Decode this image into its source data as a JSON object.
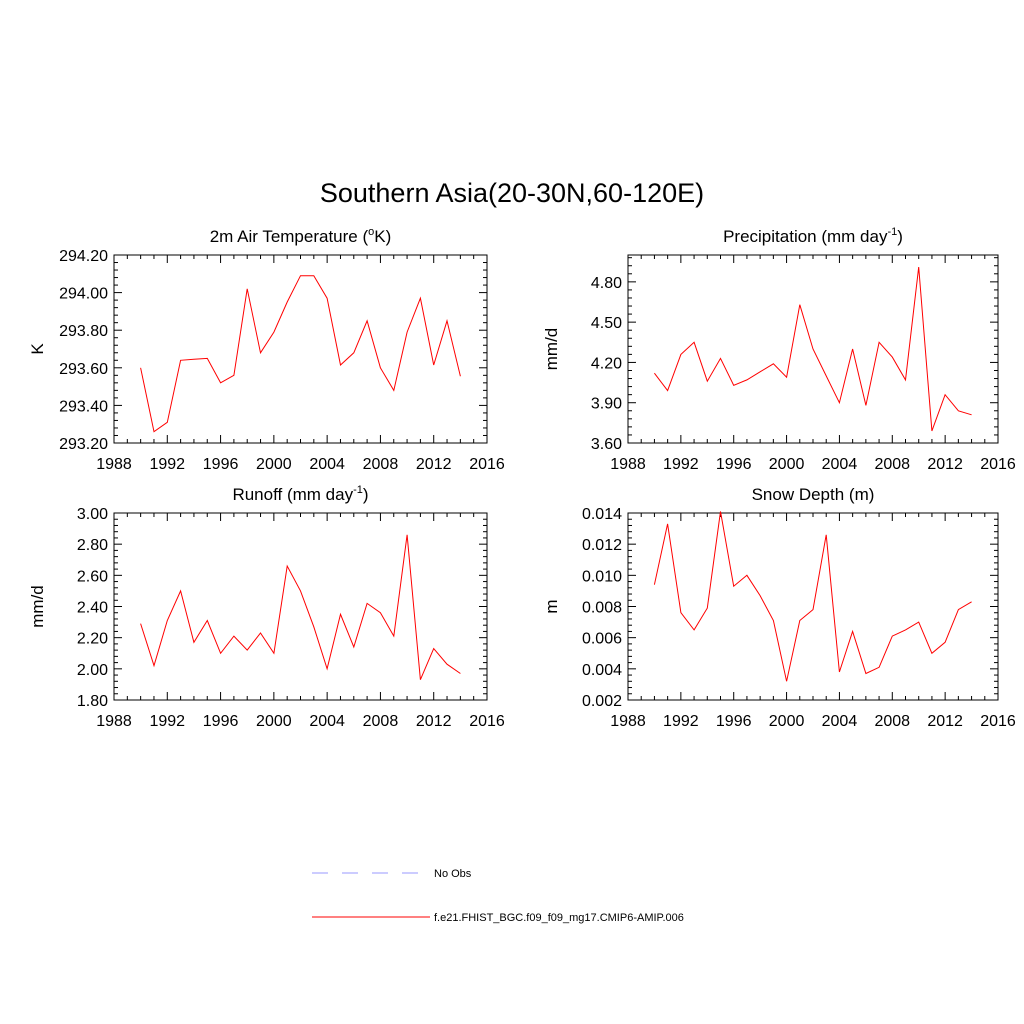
{
  "title": "Southern Asia(20-30N,60-120E)",
  "colors": {
    "model": "#ff0000",
    "obs": "#9999ff",
    "axis": "#000000"
  },
  "legend": {
    "obs_label": "No Obs",
    "model_label": "f.e21.FHIST_BGC.f09_f09_mg17.CMIP6-AMIP.006"
  },
  "chart_data": [
    {
      "type": "line",
      "title_main": "2m Air Temperature (",
      "title_sup_pre": "o",
      "title_post": "K)",
      "ylabel": "K",
      "xlabel": "",
      "xlim": [
        1988,
        2016
      ],
      "xticks": [
        "1988",
        "1992",
        "1996",
        "2000",
        "2004",
        "2008",
        "2012",
        "2016"
      ],
      "ylim": [
        293.2,
        294.2
      ],
      "yticks": [
        "293.20",
        "293.40",
        "293.60",
        "293.80",
        "294.00",
        "294.20"
      ],
      "x": [
        1990,
        1991,
        1992,
        1993,
        1994,
        1995,
        1996,
        1997,
        1998,
        1999,
        2000,
        2001,
        2002,
        2003,
        2004,
        2005,
        2006,
        2007,
        2008,
        2009,
        2010,
        2011,
        2012,
        2013,
        2014
      ],
      "series": [
        {
          "name": "f.e21.FHIST_BGC.f09_f09_mg17.CMIP6-AMIP.006",
          "values": [
            293.6,
            293.26,
            293.31,
            293.64,
            293.645,
            293.65,
            293.52,
            293.56,
            294.02,
            293.68,
            293.79,
            293.95,
            294.09,
            294.09,
            293.97,
            293.615,
            293.68,
            293.85,
            293.6,
            293.48,
            293.79,
            293.97,
            293.615,
            293.85,
            293.555
          ]
        }
      ]
    },
    {
      "type": "line",
      "title_main": "Precipitation (mm day",
      "title_sup_post": "-1",
      "title_post": ")",
      "ylabel": "mm/d",
      "xlabel": "",
      "xlim": [
        1988,
        2016
      ],
      "xticks": [
        "1988",
        "1992",
        "1996",
        "2000",
        "2004",
        "2008",
        "2012",
        "2016"
      ],
      "ylim": [
        3.6,
        5.0
      ],
      "yticks": [
        "3.60",
        "3.90",
        "4.20",
        "4.50",
        "4.80"
      ],
      "x": [
        1990,
        1991,
        1992,
        1993,
        1994,
        1995,
        1996,
        1997,
        1998,
        1999,
        2000,
        2001,
        2002,
        2003,
        2004,
        2005,
        2006,
        2007,
        2008,
        2009,
        2010,
        2011,
        2012,
        2013,
        2014
      ],
      "series": [
        {
          "name": "f.e21.FHIST_BGC.f09_f09_mg17.CMIP6-AMIP.006",
          "values": [
            4.12,
            3.99,
            4.26,
            4.35,
            4.06,
            4.23,
            4.03,
            4.07,
            4.13,
            4.19,
            4.09,
            4.63,
            4.3,
            4.1,
            3.9,
            4.3,
            3.88,
            4.35,
            4.24,
            4.07,
            4.91,
            3.69,
            3.96,
            3.84,
            3.81
          ]
        }
      ]
    },
    {
      "type": "line",
      "title_main": "Runoff (mm day",
      "title_sup_post": "-1",
      "title_post": ")",
      "ylabel": "mm/d",
      "xlabel": "",
      "xlim": [
        1988,
        2016
      ],
      "xticks": [
        "1988",
        "1992",
        "1996",
        "2000",
        "2004",
        "2008",
        "2012",
        "2016"
      ],
      "ylim": [
        1.8,
        3.0
      ],
      "yticks": [
        "1.80",
        "2.00",
        "2.20",
        "2.40",
        "2.60",
        "2.80",
        "3.00"
      ],
      "x": [
        1990,
        1991,
        1992,
        1993,
        1994,
        1995,
        1996,
        1997,
        1998,
        1999,
        2000,
        2001,
        2002,
        2003,
        2004,
        2005,
        2006,
        2007,
        2008,
        2009,
        2010,
        2011,
        2012,
        2013,
        2014
      ],
      "series": [
        {
          "name": "f.e21.FHIST_BGC.f09_f09_mg17.CMIP6-AMIP.006",
          "values": [
            2.29,
            2.02,
            2.31,
            2.5,
            2.17,
            2.31,
            2.1,
            2.21,
            2.12,
            2.23,
            2.1,
            2.66,
            2.5,
            2.27,
            2.0,
            2.35,
            2.14,
            2.42,
            2.36,
            2.21,
            2.86,
            1.93,
            2.13,
            2.03,
            1.97
          ]
        }
      ]
    },
    {
      "type": "line",
      "title_main": "Snow Depth (m)",
      "title_post": "",
      "ylabel": "m",
      "xlabel": "",
      "xlim": [
        1988,
        2016
      ],
      "xticks": [
        "1988",
        "1992",
        "1996",
        "2000",
        "2004",
        "2008",
        "2012",
        "2016"
      ],
      "ylim": [
        0.002,
        0.014
      ],
      "yticks": [
        "0.002",
        "0.004",
        "0.006",
        "0.008",
        "0.010",
        "0.012",
        "0.014"
      ],
      "x": [
        1990,
        1991,
        1992,
        1993,
        1994,
        1995,
        1996,
        1997,
        1998,
        1999,
        2000,
        2001,
        2002,
        2003,
        2004,
        2005,
        2006,
        2007,
        2008,
        2009,
        2010,
        2011,
        2012,
        2013,
        2014
      ],
      "series": [
        {
          "name": "f.e21.FHIST_BGC.f09_f09_mg17.CMIP6-AMIP.006",
          "values": [
            0.0094,
            0.0133,
            0.0076,
            0.0065,
            0.0079,
            0.0141,
            0.0093,
            0.01,
            0.0087,
            0.0071,
            0.0032,
            0.0071,
            0.0078,
            0.0126,
            0.0038,
            0.0064,
            0.0037,
            0.0041,
            0.0061,
            0.0065,
            0.007,
            0.005,
            0.0057,
            0.0078,
            0.0083
          ]
        }
      ]
    }
  ]
}
